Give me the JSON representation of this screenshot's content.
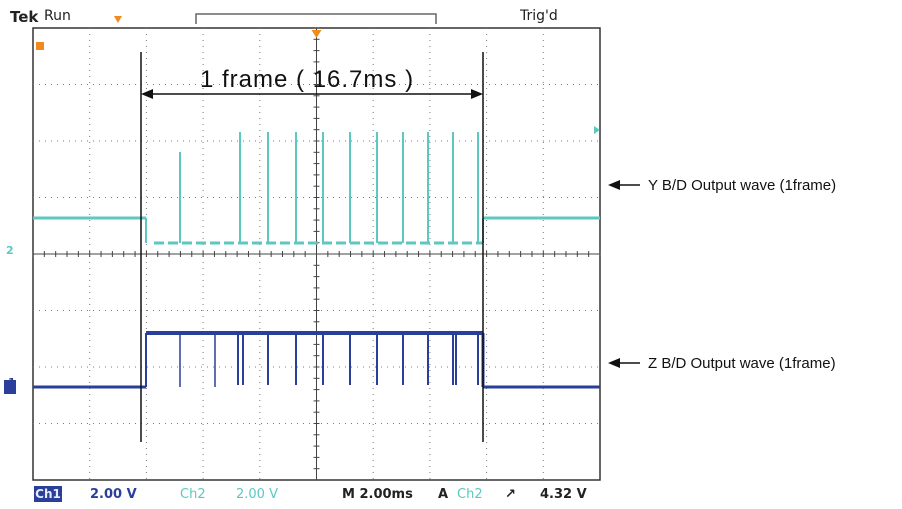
{
  "header": {
    "brand": "Tek",
    "mode": "Run",
    "trigger_state": "Trig'd"
  },
  "annotation": {
    "frame_label": "1 frame ( 16.7ms )"
  },
  "channels": [
    {
      "marker": "2",
      "color": "#5cc8c0",
      "label": "Y B/D Output wave (1frame)"
    },
    {
      "marker": "1",
      "color": "#2a3f9a",
      "label": "Z B/D Output wave (1frame)"
    }
  ],
  "status_bar": {
    "ch1": "Ch1",
    "ch1_scale": "2.00 V",
    "ch2": "Ch2",
    "ch2_scale": "2.00 V",
    "timebase": "M 2.00ms",
    "trigger_mode": "A",
    "trigger_source": "Ch2",
    "trigger_slope": "↗",
    "trigger_level": "4.32 V"
  },
  "colors": {
    "ch1": "#2a3f9a",
    "ch2": "#5cc8c0",
    "grid": "#7a7a7a",
    "trigger": "#f08a1c"
  }
}
